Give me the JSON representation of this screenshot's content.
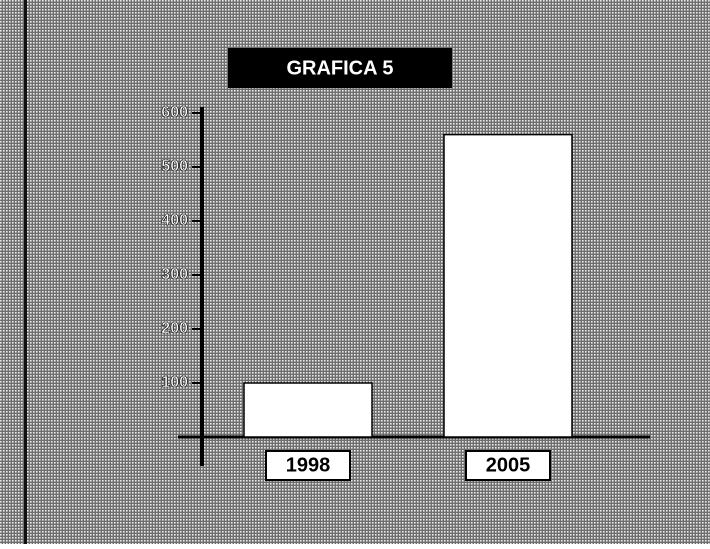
{
  "chart_data": {
    "type": "bar",
    "title": "GRAFICA 5",
    "categories": [
      "1998",
      "2005"
    ],
    "values": [
      100,
      560
    ],
    "color": "#ffffff",
    "ylim": [
      0,
      600
    ],
    "yticks": [
      100,
      200,
      300,
      400,
      500,
      600
    ]
  }
}
